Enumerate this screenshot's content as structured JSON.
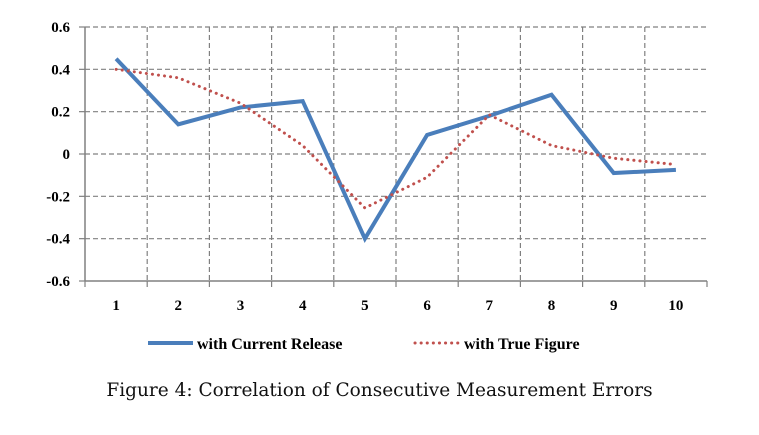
{
  "chart_data": {
    "type": "line",
    "title": "",
    "xlabel": "",
    "ylabel": "",
    "categories": [
      "1",
      "2",
      "3",
      "4",
      "5",
      "6",
      "7",
      "8",
      "9",
      "10"
    ],
    "ylim": [
      -0.6,
      0.6
    ],
    "yticks": [
      -0.6,
      -0.4,
      -0.2,
      0,
      0.2,
      0.4,
      0.6
    ],
    "ytick_labels": [
      "-0.6",
      "-0.4",
      "-0.2",
      "0",
      "0.2",
      "0.4",
      "0.6"
    ],
    "grid": true,
    "legend_placement": "bottom",
    "series": [
      {
        "name": "with Current Release",
        "color": "#4a7ebb",
        "style": "solid",
        "values": [
          0.45,
          0.14,
          0.22,
          0.25,
          -0.4,
          0.09,
          0.18,
          0.28,
          -0.09,
          -0.075
        ]
      },
      {
        "name": "with True Figure",
        "color": "#c0504d",
        "style": "dotted",
        "values": [
          0.4,
          0.36,
          0.24,
          0.04,
          -0.255,
          -0.11,
          0.185,
          0.04,
          -0.02,
          -0.05
        ]
      }
    ]
  },
  "caption": "Figure 4: Correlation of Consecutive Measurement Errors"
}
